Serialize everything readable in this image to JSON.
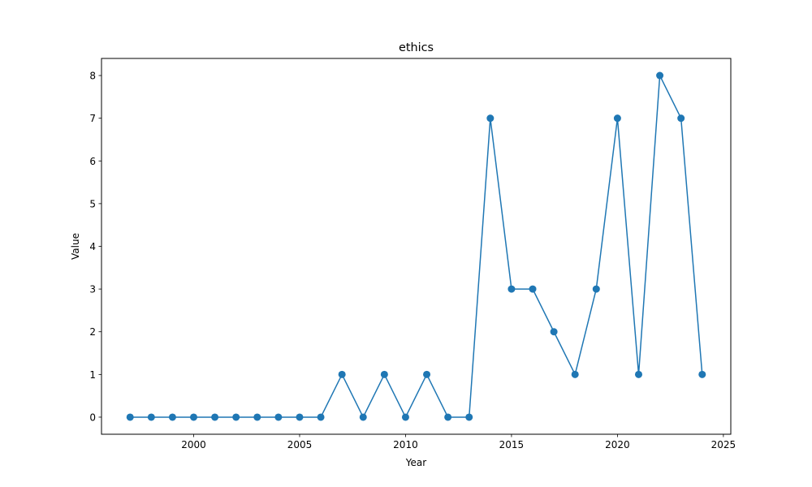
{
  "chart_data": {
    "type": "line",
    "title": "ethics",
    "xlabel": "Year",
    "ylabel": "Value",
    "xlim": [
      1995.65,
      2025.35
    ],
    "ylim": [
      -0.4,
      8.4
    ],
    "x_ticks": [
      2000,
      2005,
      2010,
      2015,
      2020,
      2025
    ],
    "y_ticks": [
      0,
      1,
      2,
      3,
      4,
      5,
      6,
      7,
      8
    ],
    "grid": false,
    "legend": "none",
    "series": [
      {
        "color": "#1f77b4",
        "marker": "circle",
        "x": [
          1997,
          1998,
          1999,
          2000,
          2001,
          2002,
          2003,
          2004,
          2005,
          2006,
          2007,
          2008,
          2009,
          2010,
          2011,
          2012,
          2013,
          2014,
          2015,
          2016,
          2017,
          2018,
          2019,
          2020,
          2021,
          2022,
          2023,
          2024
        ],
        "y": [
          0,
          0,
          0,
          0,
          0,
          0,
          0,
          0,
          0,
          0,
          1,
          0,
          1,
          0,
          1,
          0,
          0,
          7,
          3,
          3,
          2,
          1,
          3,
          7,
          1,
          8,
          7,
          1
        ]
      }
    ]
  }
}
